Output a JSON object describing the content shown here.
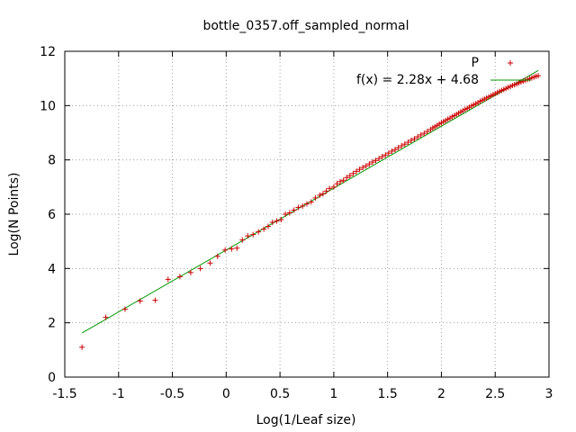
{
  "chart_data": {
    "type": "scatter",
    "title": "bottle_0357.off_sampled_normal",
    "xlabel": "Log(1/Leaf size)",
    "ylabel": "Log(N Points)",
    "xlim": [
      -1.5,
      3
    ],
    "ylim": [
      0,
      12
    ],
    "x_ticks": [
      "-1.5",
      "-1",
      "-0.5",
      "0",
      "0.5",
      "1",
      "1.5",
      "2",
      "2.5",
      "3"
    ],
    "y_ticks": [
      "0",
      "2",
      "4",
      "6",
      "8",
      "10",
      "12"
    ],
    "grid": true,
    "legend_position": "top-right",
    "series": [
      {
        "name": "P",
        "color": "#cc0000",
        "marker": "plus",
        "points": [
          [
            -1.34,
            1.1
          ],
          [
            -1.12,
            2.2
          ],
          [
            -0.94,
            2.5
          ],
          [
            -0.8,
            2.8
          ],
          [
            -0.66,
            2.83
          ],
          [
            -0.54,
            3.6
          ],
          [
            -0.43,
            3.7
          ],
          [
            -0.33,
            3.85
          ],
          [
            -0.24,
            4.0
          ],
          [
            -0.15,
            4.2
          ],
          [
            -0.08,
            4.45
          ],
          [
            -0.01,
            4.68
          ],
          [
            0.05,
            4.72
          ],
          [
            0.1,
            4.75
          ],
          [
            0.15,
            5.05
          ],
          [
            0.2,
            5.2
          ],
          [
            0.25,
            5.25
          ],
          [
            0.3,
            5.35
          ],
          [
            0.35,
            5.45
          ],
          [
            0.39,
            5.55
          ],
          [
            0.43,
            5.7
          ],
          [
            0.47,
            5.75
          ],
          [
            0.51,
            5.8
          ],
          [
            0.55,
            6.0
          ],
          [
            0.59,
            6.05
          ],
          [
            0.63,
            6.15
          ],
          [
            0.67,
            6.25
          ],
          [
            0.71,
            6.3
          ],
          [
            0.75,
            6.38
          ],
          [
            0.79,
            6.45
          ],
          [
            0.83,
            6.6
          ],
          [
            0.87,
            6.7
          ],
          [
            0.9,
            6.75
          ],
          [
            0.93,
            6.85
          ],
          [
            0.96,
            6.95
          ],
          [
            1.0,
            7.0
          ],
          [
            1.03,
            7.12
          ],
          [
            1.06,
            7.2
          ],
          [
            1.09,
            7.25
          ],
          [
            1.12,
            7.35
          ],
          [
            1.15,
            7.42
          ],
          [
            1.18,
            7.5
          ],
          [
            1.21,
            7.58
          ],
          [
            1.24,
            7.65
          ],
          [
            1.27,
            7.72
          ],
          [
            1.3,
            7.78
          ],
          [
            1.33,
            7.85
          ],
          [
            1.36,
            7.92
          ],
          [
            1.39,
            7.98
          ],
          [
            1.42,
            8.05
          ],
          [
            1.45,
            8.12
          ],
          [
            1.48,
            8.18
          ],
          [
            1.51,
            8.25
          ],
          [
            1.54,
            8.32
          ],
          [
            1.57,
            8.38
          ],
          [
            1.6,
            8.45
          ],
          [
            1.63,
            8.52
          ],
          [
            1.66,
            8.58
          ],
          [
            1.69,
            8.65
          ],
          [
            1.72,
            8.72
          ],
          [
            1.75,
            8.78
          ],
          [
            1.78,
            8.85
          ],
          [
            1.81,
            8.92
          ],
          [
            1.84,
            8.98
          ],
          [
            1.87,
            9.05
          ],
          [
            1.9,
            9.12
          ],
          [
            1.92,
            9.18
          ],
          [
            1.94,
            9.22
          ],
          [
            1.96,
            9.27
          ],
          [
            1.98,
            9.32
          ],
          [
            2.0,
            9.36
          ],
          [
            2.02,
            9.41
          ],
          [
            2.04,
            9.45
          ],
          [
            2.06,
            9.5
          ],
          [
            2.08,
            9.54
          ],
          [
            2.1,
            9.59
          ],
          [
            2.12,
            9.63
          ],
          [
            2.14,
            9.68
          ],
          [
            2.16,
            9.72
          ],
          [
            2.18,
            9.77
          ],
          [
            2.2,
            9.81
          ],
          [
            2.22,
            9.86
          ],
          [
            2.24,
            9.9
          ],
          [
            2.26,
            9.94
          ],
          [
            2.28,
            9.99
          ],
          [
            2.3,
            10.03
          ],
          [
            2.32,
            10.07
          ],
          [
            2.34,
            10.11
          ],
          [
            2.36,
            10.16
          ],
          [
            2.38,
            10.2
          ],
          [
            2.4,
            10.24
          ],
          [
            2.42,
            10.28
          ],
          [
            2.44,
            10.32
          ],
          [
            2.46,
            10.36
          ],
          [
            2.48,
            10.4
          ],
          [
            2.5,
            10.44
          ],
          [
            2.52,
            10.48
          ],
          [
            2.54,
            10.52
          ],
          [
            2.56,
            10.56
          ],
          [
            2.58,
            10.59
          ],
          [
            2.6,
            10.63
          ],
          [
            2.62,
            10.67
          ],
          [
            2.64,
            10.7
          ],
          [
            2.66,
            10.74
          ],
          [
            2.68,
            10.77
          ],
          [
            2.7,
            10.8
          ],
          [
            2.72,
            10.84
          ],
          [
            2.74,
            10.87
          ],
          [
            2.76,
            10.9
          ],
          [
            2.78,
            10.93
          ],
          [
            2.8,
            10.96
          ],
          [
            2.82,
            10.99
          ],
          [
            2.84,
            11.02
          ],
          [
            2.86,
            11.05
          ],
          [
            2.88,
            11.08
          ],
          [
            2.9,
            11.1
          ]
        ]
      },
      {
        "name": "f(x) = 2.28x + 4.68",
        "color": "#009900",
        "type": "line",
        "slope": 2.28,
        "intercept": 4.68,
        "x_range": [
          -1.34,
          2.9
        ]
      }
    ]
  }
}
